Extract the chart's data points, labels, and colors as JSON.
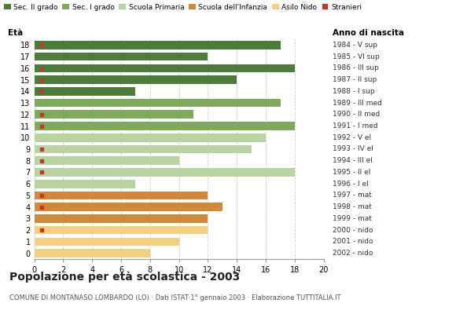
{
  "ages": [
    18,
    17,
    16,
    15,
    14,
    13,
    12,
    11,
    10,
    9,
    8,
    7,
    6,
    5,
    4,
    3,
    2,
    1,
    0
  ],
  "birth_years": [
    "1984 - V sup",
    "1985 - VI sup",
    "1986 - III sup",
    "1987 - II sup",
    "1988 - I sup",
    "1989 - III med",
    "1990 - II med",
    "1991 - I med",
    "1992 - V el",
    "1993 - IV el",
    "1994 - III el",
    "1995 - II el",
    "1996 - I el",
    "1997 - mat",
    "1998 - mat",
    "1999 - mat",
    "2000 - nido",
    "2001 - nido",
    "2002 - nido"
  ],
  "values": [
    17,
    12,
    18,
    14,
    7,
    17,
    11,
    18,
    16,
    15,
    10,
    18,
    7,
    12,
    13,
    12,
    12,
    10,
    8
  ],
  "stranieri": [
    1,
    0,
    1,
    1,
    1,
    0,
    1,
    1,
    0,
    1,
    1,
    1,
    0,
    1,
    1,
    0,
    1,
    0,
    0
  ],
  "bar_colors": [
    "#4d7c3a",
    "#4d7c3a",
    "#4d7c3a",
    "#4d7c3a",
    "#4d7c3a",
    "#7faa5c",
    "#7faa5c",
    "#7faa5c",
    "#b8d4a0",
    "#b8d4a0",
    "#b8d4a0",
    "#b8d4a0",
    "#b8d4a0",
    "#d2873a",
    "#d2873a",
    "#d2873a",
    "#f2d080",
    "#f2d080",
    "#f2d080"
  ],
  "legend_labels": [
    "Sec. II grado",
    "Sec. I grado",
    "Scuola Primaria",
    "Scuola dell'Infanzia",
    "Asilo Nido",
    "Stranieri"
  ],
  "legend_colors": [
    "#4d7c3a",
    "#7faa5c",
    "#b8d4a0",
    "#d2873a",
    "#f2d080",
    "#c0392b"
  ],
  "stranieri_color": "#c0392b",
  "title": "Popolazione per età scolastica - 2003",
  "subtitle": "COMUNE DI MONTANASO LOMBARDO (LO) · Dati ISTAT 1° gennaio 2003 · Elaborazione TUTTITALIA.IT",
  "xlabel_left": "Età",
  "xlabel_right": "Anno di nascita",
  "xlim": [
    0,
    20
  ],
  "xticks": [
    0,
    2,
    4,
    6,
    8,
    10,
    12,
    14,
    16,
    18,
    20
  ],
  "grid_color": "#cccccc",
  "bg_color": "#ffffff"
}
